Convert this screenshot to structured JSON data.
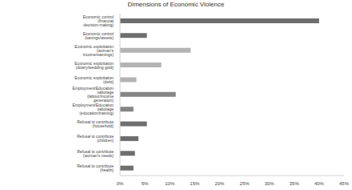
{
  "chart_data": {
    "type": "bar",
    "title": "Dimensions of Economic Violence",
    "orientation": "horizontal",
    "categories": [
      "Economic control (financial decision-making)",
      "Economic control (savings/assets)",
      "Economic exploitation (woman's income/earnings)",
      "Economic exploitation (dowry/wedding gold)",
      "Economic exploitation (debt)",
      "Employment/Education sabotage (labour/income generation)",
      "Employment/Education sabotage (education/training)",
      "Refusal to contribute (household)",
      "Refusal to contribute (children)",
      "Refusal to contribute (woman's needs)",
      "Refusal to contribute (health)"
    ],
    "values": [
      40.0,
      5.4,
      14.2,
      8.3,
      3.3,
      11.2,
      2.7,
      5.4,
      3.7,
      3.0,
      2.7
    ],
    "colors": [
      "#6e6e6e",
      "#6e6e6e",
      "#b3b3b3",
      "#b3b3b3",
      "#b3b3b3",
      "#858585",
      "#858585",
      "#6e6e6e",
      "#6e6e6e",
      "#6e6e6e",
      "#6e6e6e"
    ],
    "xlim": [
      0,
      45
    ],
    "xticks": [
      {
        "value": 0,
        "label": "0%"
      },
      {
        "value": 5,
        "label": "5%"
      },
      {
        "value": 10,
        "label": "10%"
      },
      {
        "value": 15,
        "label": "15%"
      },
      {
        "value": 20,
        "label": "20%"
      },
      {
        "value": 25,
        "label": "25%"
      },
      {
        "value": 30,
        "label": "30%"
      },
      {
        "value": 35,
        "label": "35%"
      },
      {
        "value": 40,
        "label": "40%"
      },
      {
        "value": 45,
        "label": "45%"
      }
    ],
    "grid": false
  }
}
